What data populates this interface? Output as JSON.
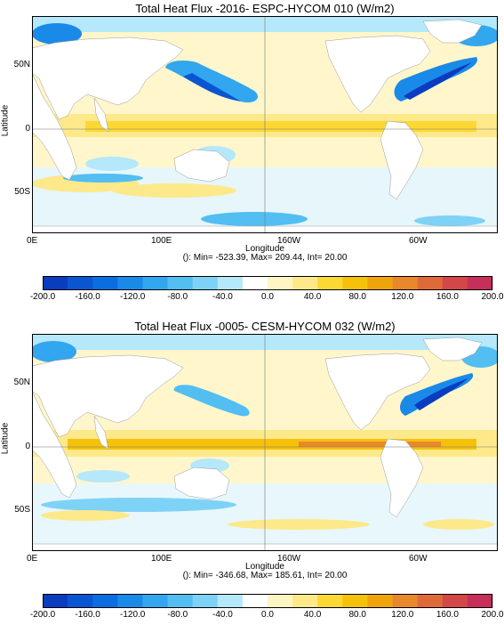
{
  "panels": [
    {
      "title": "Total Heat Flux -2016- ESPC-HYCOM 010 (W/m2)",
      "ylabel": "Latitude",
      "xlabel": "Longitude",
      "stats": "(): Min= -523.39, Max= 209.44, Int= 20.00",
      "yticks": [
        "50N",
        "0",
        "50S"
      ],
      "xticks": [
        "0E",
        "100E",
        "160W",
        "60W"
      ]
    },
    {
      "title": "Total Heat Flux -0005- CESM-HYCOM 032 (W/m2)",
      "ylabel": "Latitude",
      "xlabel": "Longitude",
      "stats": "(): Min= -346.68, Max= 185.61, Int= 20.00",
      "yticks": [
        "50N",
        "0",
        "50S"
      ],
      "xticks": [
        "0E",
        "100E",
        "160W",
        "60W"
      ]
    }
  ],
  "colorbar": {
    "ticks": [
      "-200.0",
      "-160.0",
      "-120.0",
      "-80.0",
      "-40.0",
      "0.0",
      "40.0",
      "80.0",
      "120.0",
      "160.0",
      "200.0"
    ],
    "colors": [
      "#0a3cc0",
      "#0a55d2",
      "#0a6ee0",
      "#1a8ae8",
      "#32a6ee",
      "#52bef2",
      "#7ed2f6",
      "#b4e8fa",
      "#ffffff",
      "#fdf6c4",
      "#fde98a",
      "#fcd835",
      "#f6c10a",
      "#f0a40c",
      "#e8882a",
      "#de6a3a",
      "#d2484a",
      "#c62f5a"
    ]
  },
  "colors": {
    "land": "#ffffff",
    "ocean_base": "#fff4c0"
  }
}
